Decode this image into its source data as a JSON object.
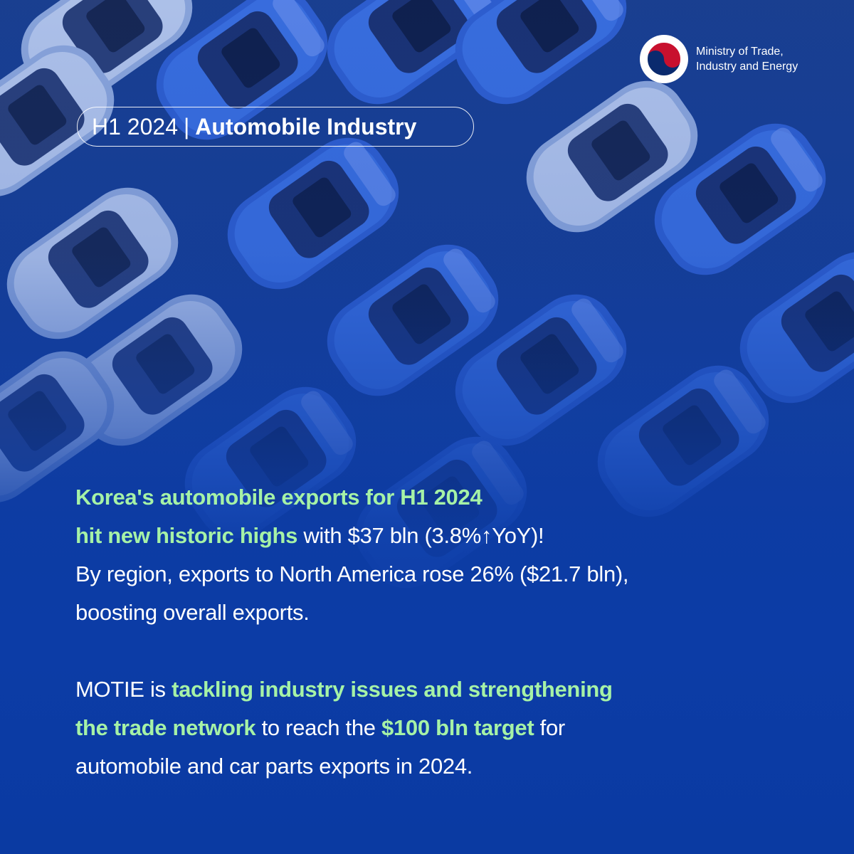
{
  "organization": {
    "name_line1": "Ministry of Trade,",
    "name_line2": "Industry and Energy",
    "emblem_icon": "taegeuk-emblem-icon"
  },
  "badge": {
    "period": "H1 2024",
    "separator": "|",
    "topic": "Automobile Industry"
  },
  "paragraph1": {
    "line1": "Korea's automobile exports for H1 2024",
    "line2_highlight": "hit new historic highs",
    "line2_rest": " with $37 bln (3.8%↑YoY)!",
    "line3": "By region, exports to North America rose 26% ($21.7 bln),",
    "line4": "boosting overall exports."
  },
  "paragraph2": {
    "line1_prefix": "MOTIE is ",
    "line1_highlight": "tackling industry issues and strengthening",
    "line2_highlight": "the trade network",
    "line2_mid": " to reach the ",
    "line2_highlight2": "$100 bln target",
    "line2_suffix": " for",
    "line3": "automobile and car parts exports in 2024."
  },
  "colors": {
    "background": "#0c3ca6",
    "highlight": "#a6f2a6",
    "text": "#ffffff"
  }
}
